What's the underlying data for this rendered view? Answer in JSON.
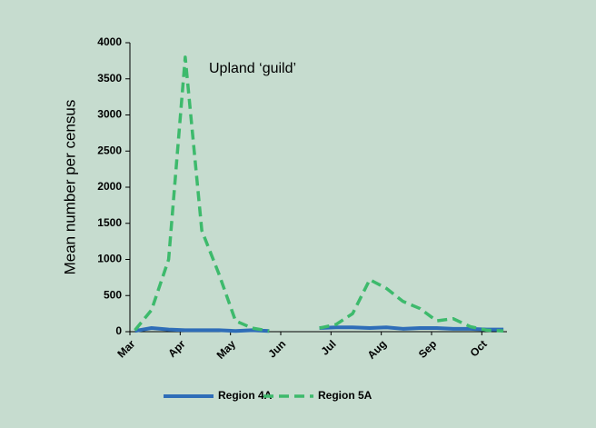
{
  "chart_data": {
    "type": "line",
    "y_label": "Mean number per census",
    "annotation": "Upland ‘guild’",
    "x": [
      3.1,
      3.43,
      3.77,
      4.1,
      4.43,
      4.77,
      5.1,
      5.43,
      5.77,
      6.1,
      6.43,
      6.77,
      7.1,
      7.43,
      7.77,
      8.1,
      8.43,
      8.77,
      9.1,
      9.43,
      9.77,
      10.1,
      10.43
    ],
    "series": [
      {
        "name": "Region 4A",
        "color": "#2e6db8",
        "dashed": false,
        "values": [
          10,
          50,
          30,
          20,
          20,
          20,
          10,
          20,
          10,
          null,
          null,
          50,
          60,
          60,
          50,
          60,
          40,
          50,
          50,
          40,
          40,
          30,
          30
        ]
      },
      {
        "name": "Region 5A",
        "color": "#3dba6c",
        "dashed": true,
        "values": [
          20,
          300,
          1000,
          3800,
          1400,
          800,
          150,
          50,
          10,
          null,
          null,
          50,
          100,
          250,
          720,
          600,
          420,
          320,
          150,
          180,
          70,
          20,
          10
        ]
      }
    ],
    "xlim": [
      3,
      10.5
    ],
    "xticks": [
      {
        "value": 3,
        "label": "Mar"
      },
      {
        "value": 4,
        "label": "Apr"
      },
      {
        "value": 5,
        "label": "May"
      },
      {
        "value": 6,
        "label": "Jun"
      },
      {
        "value": 7,
        "label": "Jul"
      },
      {
        "value": 8,
        "label": "Aug"
      },
      {
        "value": 9,
        "label": "Sep"
      },
      {
        "value": 10,
        "label": "Oct"
      }
    ],
    "ylim": [
      0,
      4000
    ],
    "yticks": [
      0,
      500,
      1000,
      1500,
      2000,
      2500,
      3000,
      3500,
      4000
    ],
    "grid": false,
    "legend": "bottom"
  }
}
